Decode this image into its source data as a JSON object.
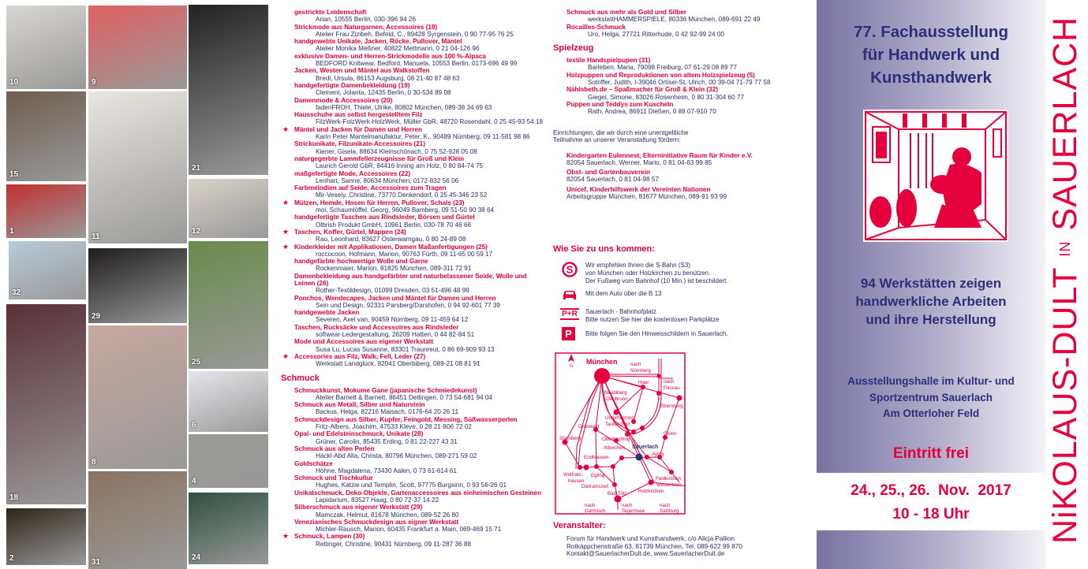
{
  "photos": [
    {
      "num": "10",
      "color": "#d8d6d2"
    },
    {
      "num": "15",
      "color": "#6e5e50"
    },
    {
      "num": "1",
      "color": "#c23030"
    },
    {
      "num": "32",
      "color": "#b8cbd8"
    },
    {
      "num": "18",
      "color": "#5a3038"
    },
    {
      "num": "2",
      "color": "#2e2418"
    },
    {
      "num": "9",
      "color": "#e06060"
    },
    {
      "num": "11",
      "color": "#e8e6e0"
    },
    {
      "num": "29",
      "color": "#1e1c1c"
    },
    {
      "num": "8",
      "color": "#c8a8a0"
    },
    {
      "num": "31",
      "color": "#8a7460"
    },
    {
      "num": "21",
      "color": "#222"
    },
    {
      "num": "12",
      "color": "#d8d2c6"
    },
    {
      "num": "25",
      "color": "#6a8a4a"
    },
    {
      "num": "6",
      "color": "#e6e6ea"
    },
    {
      "num": "4",
      "color": "#9a9a96"
    },
    {
      "num": "24",
      "color": "#2e5040"
    }
  ],
  "col1": {
    "entries": [
      {
        "title": "gestrickte Leidenschaft",
        "address": "Arian, 10555 Berlin, 030-396 94 26"
      },
      {
        "title": "Strickmode aus Naturgarnen, Accessoires  (18)",
        "address": "Atelier Frau Zizibeh, Befeld, C., 89428 Syrgenstein, 0 90 77-95 76 25"
      },
      {
        "title": "handgewebte Unikate, Jacken, Röcke, Pullover, Mäntel",
        "address": "Atelier Monika Meßner, 40822 Mettmann, 0 21 04-126 96"
      },
      {
        "title": "exklusive Damen- und Herren-Strickmodelle aus 100 %-Alpaca",
        "address": "BEDFORD Knitwear, Bedford, Manuela, 10553 Berlin, 0173-696 49 99"
      },
      {
        "title": "Jacken, Westen und Mäntel aus Walkstoffen",
        "address": "Bredl, Ursula, 86153 Augsburg, 08 21-40 87 48 63"
      },
      {
        "title": "handgefertigte Damenbekleidung  (19)",
        "address": "Clement, Jolanta, 12435 Berlin, 0 30-534 89 08"
      },
      {
        "title": "Damenmode & Accessoires  (20)",
        "address": "fadenFROH, Thiele, Ulrike, 80802 München, 089-38 34 69 63"
      },
      {
        "title": "Hausschuhe aus selbst hergestelltem Filz",
        "address": "FilzWerk-FolzWerk-HolzWerk, Müller GbR, 48720 Rosendahl, 0 25 45-93 54 18"
      },
      {
        "title": "Mäntel und Jacken für Damen und Herren",
        "address": "Karin Peter Mantelmanufaktur, Peter, K., 90489 Nürnberg, 09 11-581 98 86",
        "star": true
      },
      {
        "title": "Strickunikate, Filzunikate-Accessoires  (21)",
        "address": "Kiener, Gisela, 88634 Kleinschönach, 0 75 52-928 05 08"
      },
      {
        "title": "naturgegerbte Lammfellerzeugnisse für Groß und Klein",
        "address": "Laurich Gerold GbR, 84416 Inning am Holz, 0 80 84-74 75"
      },
      {
        "title": "maßgefertigte Mode, Accessoires  (22)",
        "address": "Lenhart, Sanne, 80634 München, 0172-832 56 06"
      },
      {
        "title": "Farbmelodien auf Seide, Accessoires zum Tragen",
        "address": "Mir-Vesely, Christine, 73770 Denkendorf, 0 25 45-346 23 52"
      },
      {
        "title": "Mützen, Hemde, Hosen für Herren, Pullover, Schals  (23)",
        "address": "moi, Schaumlöffel, Georg, 96049 Bamberg, 09 51-50 90 38 64",
        "star": true
      },
      {
        "title": "handgefertigte Taschen aus Rindsleder, Börsen und Gürtel",
        "address": "Olbrish Produkt GmbH, 10961 Berlin, 030-78 70 46 66"
      },
      {
        "title": "Taschen, Koffer, Gürtel, Mappen  (24)",
        "address": "Rau, Leonhard, 83627 Osterwarngau, 0 80 24-89 08",
        "star": true
      },
      {
        "title": "Kinderkleider mit Applikationen, Damen Maßanfertigungen  (25)",
        "address": "roccocoon, Hofmann, Marion, 90763 Fürth, 09 11-65 00 59 17",
        "star": true
      },
      {
        "title": "handgefärbte hochwertige Wolle und Garne",
        "address": "Rockenmaier, Marion, 81825 München, 089-311 72 91"
      },
      {
        "title": "Damenbekleidung aus handgefärbter und naturbelassener Seide, Wolle und Leinen  (26)",
        "address": "Rother-Textildesign, 01099 Dresden, 03 51-496 48 99"
      },
      {
        "title": "Ponchos, Wendecapes, Jacken und Mäntel für Damen und Herren",
        "address": "Sein und Design, 92331 Parsberg/Darshofen, 0 94 92-601 77 39"
      },
      {
        "title": "handgewebte Jacken",
        "address": "Severen, Axel van, 90459 Nürnberg, 09 11-459 64 12"
      },
      {
        "title": "Taschen, Rucksäcke und Accessoires aus Rindsleder",
        "address": "softwear-Ledergestaltung, 26209 Hatten, 0 44 82-84 51"
      },
      {
        "title": "Mode und Accessoires aus eigener Werkstatt",
        "address": "Susa Lu, Lucas Susanne, 83301 Traunreut, 0 86 69-909 93 13"
      },
      {
        "title": "Accessories aus Filz, Walk, Fell, Leder  (27)",
        "address": "Werkstatt Landglück, 82041 Oberbiberg, 089-21 08 81 91",
        "star": true
      }
    ],
    "schmuck_heading": "Schmuck",
    "schmuck": [
      {
        "title": "Schmuckkunst, Mokume Gane (japanische Schmiedekunst)",
        "address": "Atelier Barnett & Barnett, 86451 Dettingen, 0 73 54-681 94 04"
      },
      {
        "title": "Schmuck aus Metall, Silber und Naturstein",
        "address": "Backus, Helga, 82216 Maisach, 0176-64 20 26 11"
      },
      {
        "title": "Schmuckdesign aus Silber, Kupfer, Feingold, Messing, Süßwasserperlen",
        "address": "Fritz-Albers, Joachim, 47533 Kleve, 0 28 21-806 72 02"
      },
      {
        "title": "Opal- und Edelsteinschmuck, Unikate  (28)",
        "address": "Grüner, Carolin, 85435 Erding, 0 81 22-227 43 31"
      },
      {
        "title": "Schmuck aus alten Perlen",
        "address": "Häckl-Abd Alla, Christa, 80796 München, 089-271 59 02"
      },
      {
        "title": "Goldschätze",
        "address": "Höhne, Magdalena, 73430 Aalen, 0 73 61-614 61"
      },
      {
        "title": "Schmuck und Tischkultur",
        "address": "Hughes, Katzie und Templin, Scott, 97775 Burgsinn, 0 93 56-26 01"
      },
      {
        "title": "Unikatschmuck, Deko-Objekte, Gartenaccessoires aus einheimischen Gesteinen",
        "address": "Lapidarium, 83527 Haag, 0 80 72-37 14 22"
      },
      {
        "title": "Silberschmuck aus eigener Werkstatt  (29)",
        "address": "Mamczak, Helmut, 81678 München, 089-52 26 80"
      },
      {
        "title": "Venezianisches Schmuckdesign aus eigner Werkstatt",
        "address": "Michler-Rausch, Marion, 60435 Frankfurt a. Main, 069-469 15 71"
      },
      {
        "title": "Schmuck, Lampen  (30)",
        "address": "Rettinger, Christine, 90431 Nürnberg, 09 11-287 36 88",
        "star": true
      }
    ]
  },
  "col2": {
    "schmuck_cont": [
      {
        "title": "Schmuck aus mehr als Gold und Silber",
        "address": "werkstattHAMMERSPIELE, 80336 München, 089-691 22 49"
      },
      {
        "title": "Rocailles-Schmuck",
        "address": "Uro, Helga, 27721 Ritterhude, 0 42 92-99 24 00"
      }
    ],
    "spielzeug_heading": "Spielzeug",
    "spielzeug": [
      {
        "title": "textile Handspielpupen  (31)",
        "address": "Barleben, Maria, 79098 Freiburg, 07 61-29 08 89 77"
      },
      {
        "title": "Holzpuppen und Reproduktionen von altem Holzspielzeug  (5)",
        "address": "Sotriffer, Judith, I-39046 Ortisei-St. Ulrich, 00 39-04 71-79 77 58"
      },
      {
        "title": "Nählsbeth.de – Spaßmacher für Groß & Klein  (32)",
        "address": "Giegel, Simone, 83026 Rosenheim, 0 80 31-304 60 77"
      },
      {
        "title": "Puppen und Teddys zum Kuscheln",
        "address": "Rath, Andrea, 86911 Dießen, 0 88 07-910 70"
      }
    ],
    "supporters_intro": [
      "Einrichtungen, die wir durch eine unentgeltliche",
      "Teilnahme an unserer Veranstaltung fördern:"
    ],
    "supporters": [
      {
        "title": "Kindergarten Eulennest, Elterninitiative Raum für Kinder e.V.",
        "address": "82054 Sauerlach, Werner, Mario, 0 81 04-63 99 85"
      },
      {
        "title": "Obst- und Gartenbauverein",
        "address": "82054 Sauerlach, 0 81 04-98 57"
      },
      {
        "title": "Unicef, Kinderhilfswerk der Vereinten Nationen",
        "address": "Arbeitsgruppe München, 81677 München, 089-91 93 99"
      }
    ],
    "directions_heading": "Wie Sie zu uns kommen:",
    "directions": [
      {
        "icon": "s-bahn-icon",
        "lines": [
          "Wir empfehlen Ihnen die S-Bahn (S3)",
          "von München oder Holzkirchen zu benützen.",
          "Der Fußweg vom Bahnhof (10 Min.) ist beschildert."
        ]
      },
      {
        "icon": "car-icon",
        "lines": [
          "Mit dem Auto über die B 13"
        ]
      },
      {
        "icon": "park-and-ride-icon",
        "label": "P+R",
        "lines": [
          "Sauerlach - Bahnhofplatz",
          "Bitte nutzen Sie hier die kostenlosen Parkplätze"
        ]
      },
      {
        "icon": "parking-icon",
        "label": "P",
        "lines": [
          "Bitte folgen Sie den Hinweisschildern in Sauerlach."
        ]
      }
    ],
    "map": {
      "compass": "N",
      "places": [
        "München",
        "nach",
        "Nürnberg",
        "nach",
        "Passau",
        "Haar",
        "Neubiberg",
        "Ottobrunn",
        "Ebersberg",
        "Unterhaching",
        "Taufkirchen",
        "Grünwald",
        "Glonn",
        "Starnberg",
        "Oberhaching",
        "Altkirchen",
        "Sauerlach",
        "Aying",
        "Endhausen",
        "Wolfrats-",
        "hausen",
        "Egling",
        "Feldkirchen",
        "Westerham",
        "Dietramszell",
        "Holzkirchen",
        "Bad Tölz",
        "nach",
        "Garmisch",
        "nach",
        "Tegernsee",
        "nach",
        "Salzburg"
      ]
    },
    "organizer_heading": "Veranstalter:",
    "organizer": [
      "Forum für Handwerk und Kunsthandwerk, c/o Alicja Pallion",
      "Rotkäppchenstraße 63, 81739 München, Tel. 089-622 99 870",
      "Kontakt@SauerlacherDult.de, www.SauerlacherDult.de"
    ]
  },
  "cover": {
    "headline": [
      "77. Fachausstellung",
      "für Handwerk und",
      "Kunsthandwerk"
    ],
    "subline": [
      "94 Werkstätten zeigen",
      "handwerkliche Arbeiten",
      "und ihre Herstellung"
    ],
    "venue": [
      "Ausstellungshalle im Kultur- und",
      "Sportzentrum Sauerlach",
      "Am Otterloher Feld"
    ],
    "admission": "Eintritt frei",
    "dates": "24., 25., 26.  Nov.  2017",
    "hours": "10 - 18 Uhr",
    "vertical_title": {
      "part1": "NiKOLAUS-DULT",
      "part2": "IN",
      "part3": "SAUERLACH"
    }
  },
  "colors": {
    "accent_red": "#e5003d",
    "navy": "#2e2f7a",
    "text": "#2b2a6e",
    "gradient_start": "#7872a2"
  }
}
